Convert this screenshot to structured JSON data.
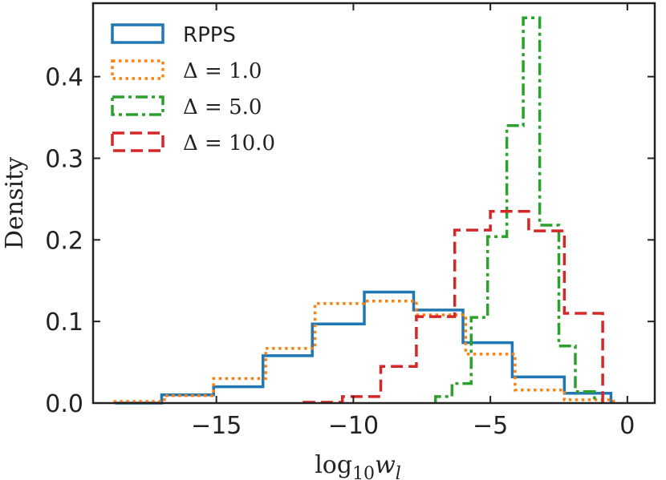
{
  "chart_data": {
    "type": "histogram",
    "title": "",
    "xlabel": "log10 wl",
    "xlabel_parts": {
      "base": "log",
      "sub": "10",
      "var": "w",
      "varsub": "l"
    },
    "ylabel": "Density",
    "xlim": [
      -19.5,
      1.0
    ],
    "ylim": [
      0,
      0.49
    ],
    "xticks": [
      -15,
      -10,
      -5,
      0
    ],
    "xtick_labels": [
      "−15",
      "−10",
      "−5",
      "0"
    ],
    "yticks": [
      0.0,
      0.1,
      0.2,
      0.3,
      0.4
    ],
    "ytick_labels": [
      "0.0",
      "0.1",
      "0.2",
      "0.3",
      "0.4"
    ],
    "grid": false,
    "legend_position": "top-left",
    "series": [
      {
        "name": "RPPS",
        "legend_prefix": "",
        "legend_value": "RPPS",
        "color": "#1f77b4",
        "linestyle": "solid",
        "edges": [
          -18.7,
          -17.0,
          -15.1,
          -13.3,
          -11.5,
          -9.6,
          -7.8,
          -6.0,
          -4.2,
          -2.3,
          -0.6
        ],
        "values": [
          0.0,
          0.01,
          0.02,
          0.058,
          0.097,
          0.136,
          0.114,
          0.074,
          0.032,
          0.012
        ]
      },
      {
        "name": "Δ = 1.0",
        "legend_prefix": "Δ = ",
        "legend_value": "1.0",
        "color": "#ff7f0e",
        "linestyle": "dotted",
        "edges": [
          -18.7,
          -16.9,
          -15.1,
          -13.2,
          -11.4,
          -9.6,
          -7.7,
          -5.9,
          -4.1,
          -2.3,
          -0.5
        ],
        "values": [
          0.002,
          0.009,
          0.03,
          0.067,
          0.122,
          0.125,
          0.108,
          0.06,
          0.016,
          0.004
        ]
      },
      {
        "name": "Δ = 5.0",
        "legend_prefix": "Δ = ",
        "legend_value": "5.0",
        "color": "#2ca02c",
        "linestyle": "dashdot",
        "edges": [
          -7.0,
          -6.4,
          -5.7,
          -5.1,
          -4.4,
          -3.8,
          -3.2,
          -2.5,
          -1.9,
          -1.2
        ],
        "values": [
          0.008,
          0.024,
          0.105,
          0.204,
          0.34,
          0.472,
          0.218,
          0.07,
          0.014
        ]
      },
      {
        "name": "Δ = 10.0",
        "legend_prefix": "Δ = ",
        "legend_value": "10.0",
        "color": "#d62728",
        "linestyle": "dashed",
        "edges": [
          -11.8,
          -10.4,
          -9.0,
          -7.7,
          -6.3,
          -5.0,
          -3.6,
          -2.3,
          -0.9
        ],
        "values": [
          0.001,
          0.008,
          0.045,
          0.106,
          0.212,
          0.235,
          0.211,
          0.11
        ]
      }
    ]
  }
}
